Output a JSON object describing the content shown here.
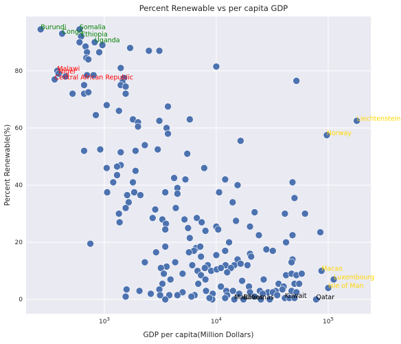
{
  "chart_data": {
    "type": "scatter",
    "title": "Percent Renewable vs per capita GDP",
    "xlabel": "GDP per capita(Million Dollars)",
    "ylabel": "Percent Renewable(%)",
    "xscale": "log",
    "xlim": [
      200,
      240000
    ],
    "ylim": [
      -5,
      99
    ],
    "xticks": [
      {
        "value": 1000,
        "base": "10",
        "exp": "3"
      },
      {
        "value": 10000,
        "base": "10",
        "exp": "4"
      },
      {
        "value": 100000,
        "base": "10",
        "exp": "5"
      }
    ],
    "yticks": [
      0,
      20,
      40,
      60,
      80
    ],
    "grid": true,
    "colors": {
      "background": "#eaeaf2",
      "grid": "#ffffff",
      "marker": "#4c72b0",
      "high_renewable_poor": "#008000",
      "high_renewable_low_income": "#ff0000",
      "high_gdp": "#ffd700",
      "low_renewable": "#000000"
    },
    "points": [
      [
        270,
        94.5
      ],
      [
        420,
        93
      ],
      [
        600,
        94.5
      ],
      [
        620,
        92
      ],
      [
        600,
        90
      ],
      [
        680,
        88.5
      ],
      [
        820,
        90
      ],
      [
        960,
        89
      ],
      [
        700,
        86.5
      ],
      [
        900,
        86.5
      ],
      [
        1700,
        88
      ],
      [
        2500,
        87
      ],
      [
        3100,
        87
      ],
      [
        690,
        84.5
      ],
      [
        720,
        84
      ],
      [
        10000,
        81.5
      ],
      [
        380,
        80
      ],
      [
        390,
        79
      ],
      [
        450,
        78
      ],
      [
        700,
        78.5
      ],
      [
        1400,
        81
      ],
      [
        1500,
        77.5
      ],
      [
        800,
        78.5
      ],
      [
        360,
        77
      ],
      [
        1450,
        76
      ],
      [
        1400,
        75
      ],
      [
        1550,
        74.5
      ],
      [
        660,
        75
      ],
      [
        52000,
        76.5
      ],
      [
        520,
        72
      ],
      [
        660,
        72
      ],
      [
        720,
        72.5
      ],
      [
        1550,
        72
      ],
      [
        1050,
        68
      ],
      [
        3700,
        67.5
      ],
      [
        1350,
        66
      ],
      [
        840,
        64.5
      ],
      [
        1800,
        63
      ],
      [
        5800,
        63
      ],
      [
        3100,
        62.5
      ],
      [
        2000,
        62
      ],
      [
        2000,
        60.5
      ],
      [
        3600,
        60
      ],
      [
        3700,
        58
      ],
      [
        16500,
        55.5
      ],
      [
        2300,
        54
      ],
      [
        920,
        52.5
      ],
      [
        3000,
        52.5
      ],
      [
        1400,
        51.5
      ],
      [
        1900,
        52
      ],
      [
        660,
        52
      ],
      [
        5500,
        51
      ],
      [
        1400,
        47
      ],
      [
        1300,
        46.5
      ],
      [
        1050,
        46
      ],
      [
        7800,
        46
      ],
      [
        1900,
        45
      ],
      [
        1300,
        43.5
      ],
      [
        4200,
        42.5
      ],
      [
        5300,
        42
      ],
      [
        12000,
        42
      ],
      [
        48000,
        41
      ],
      [
        1800,
        41
      ],
      [
        1200,
        41
      ],
      [
        4500,
        39
      ],
      [
        15500,
        40
      ],
      [
        1850,
        37.5
      ],
      [
        1060,
        37.5
      ],
      [
        3500,
        37.5
      ],
      [
        4500,
        37
      ],
      [
        1600,
        36.5
      ],
      [
        10600,
        37.5
      ],
      [
        2100,
        36.5
      ],
      [
        1650,
        34
      ],
      [
        50000,
        35.5
      ],
      [
        1550,
        32
      ],
      [
        2850,
        31.5
      ],
      [
        4350,
        32
      ],
      [
        14000,
        34
      ],
      [
        41000,
        30
      ],
      [
        62000,
        30
      ],
      [
        22000,
        30.5
      ],
      [
        1350,
        30
      ],
      [
        2700,
        28.5
      ],
      [
        3300,
        28
      ],
      [
        5200,
        28
      ],
      [
        6700,
        28.5
      ],
      [
        3550,
        26.5
      ],
      [
        1370,
        27
      ],
      [
        7400,
        27
      ],
      [
        3500,
        24.5
      ],
      [
        5600,
        25
      ],
      [
        8000,
        24
      ],
      [
        10000,
        25.5
      ],
      [
        20000,
        25.5
      ],
      [
        15000,
        27.5
      ],
      [
        10400,
        24.5
      ],
      [
        24000,
        22.5
      ],
      [
        85000,
        23.5
      ],
      [
        5800,
        21.5
      ],
      [
        48000,
        22.5
      ],
      [
        13000,
        20
      ],
      [
        42000,
        20
      ],
      [
        750,
        19.5
      ],
      [
        3500,
        18.5
      ],
      [
        6600,
        18
      ],
      [
        7200,
        18.5
      ],
      [
        6300,
        17
      ],
      [
        12000,
        17
      ],
      [
        28000,
        17.5
      ],
      [
        32000,
        17
      ],
      [
        20000,
        16
      ],
      [
        2900,
        16.5
      ],
      [
        5700,
        16.5
      ],
      [
        7300,
        15
      ],
      [
        10000,
        15.5
      ],
      [
        20500,
        15
      ],
      [
        15500,
        14
      ],
      [
        48000,
        14
      ],
      [
        47000,
        13
      ],
      [
        2300,
        13
      ],
      [
        4300,
        13
      ],
      [
        6100,
        12
      ],
      [
        8400,
        12
      ],
      [
        12100,
        12
      ],
      [
        14500,
        12
      ],
      [
        16500,
        12.5
      ],
      [
        19000,
        12
      ],
      [
        3600,
        11.5
      ],
      [
        3200,
        11
      ],
      [
        7900,
        11
      ],
      [
        6800,
        10
      ],
      [
        9000,
        10
      ],
      [
        10100,
        10.5
      ],
      [
        11000,
        11
      ],
      [
        13500,
        11
      ],
      [
        3400,
        9
      ],
      [
        5000,
        9
      ],
      [
        7300,
        8.5
      ],
      [
        12500,
        9.5
      ],
      [
        42000,
        8.5
      ],
      [
        47000,
        9
      ],
      [
        52000,
        8.5
      ],
      [
        58000,
        9
      ],
      [
        3900,
        7
      ],
      [
        8000,
        7
      ],
      [
        17000,
        6.5
      ],
      [
        26500,
        7
      ],
      [
        36000,
        5.5
      ],
      [
        50000,
        5.5
      ],
      [
        40000,
        4.5
      ],
      [
        3300,
        5.5
      ],
      [
        6900,
        5.5
      ],
      [
        11000,
        4.5
      ],
      [
        19600,
        4.5
      ],
      [
        55000,
        5.5
      ],
      [
        34000,
        3
      ],
      [
        1580,
        3.5
      ],
      [
        2060,
        3
      ],
      [
        3100,
        3.5
      ],
      [
        5000,
        2.5
      ],
      [
        6400,
        1.5
      ],
      [
        8100,
        3
      ],
      [
        12300,
        3
      ],
      [
        14100,
        3
      ],
      [
        24500,
        3
      ],
      [
        29000,
        2.5
      ],
      [
        39000,
        3.5
      ],
      [
        47000,
        3
      ],
      [
        52000,
        2.5
      ],
      [
        2600,
        2
      ],
      [
        3800,
        1.5
      ],
      [
        4500,
        1.5
      ],
      [
        9300,
        2
      ],
      [
        12500,
        1.5
      ],
      [
        16000,
        2
      ],
      [
        20000,
        2.5
      ],
      [
        26000,
        2
      ],
      [
        32000,
        2.5
      ],
      [
        35000,
        1.5
      ],
      [
        1550,
        1
      ],
      [
        3150,
        1.5
      ],
      [
        3500,
        0
      ],
      [
        6000,
        1
      ],
      [
        9200,
        0
      ],
      [
        12000,
        0.5
      ],
      [
        17500,
        0
      ],
      [
        22000,
        1
      ],
      [
        25000,
        0
      ],
      [
        30000,
        0
      ],
      [
        41000,
        0.5
      ],
      [
        45000,
        0.5
      ],
      [
        50000,
        0.5
      ],
      [
        78000,
        0
      ],
      [
        8700,
        0.5
      ],
      [
        14500,
        0
      ],
      [
        112000,
        7
      ],
      [
        100000,
        4
      ],
      [
        87000,
        10
      ],
      [
        97000,
        57.5
      ],
      [
        180000,
        62.5
      ]
    ],
    "annotations": [
      {
        "text": "Burundi",
        "x": 270,
        "y": 94.5,
        "color": "#008000"
      },
      {
        "text": "Somalia",
        "x": 600,
        "y": 94.5,
        "color": "#008000"
      },
      {
        "text": "Congo",
        "x": 420,
        "y": 93,
        "color": "#008000"
      },
      {
        "text": "Ethiopia",
        "x": 620,
        "y": 92,
        "color": "#008000"
      },
      {
        "text": "Uganda",
        "x": 820,
        "y": 90,
        "color": "#008000"
      },
      {
        "text": "Malawi",
        "x": 380,
        "y": 80,
        "color": "#ff0000"
      },
      {
        "text": "Niger",
        "x": 390,
        "y": 79,
        "color": "#ff0000"
      },
      {
        "text": "Central African Republic",
        "x": 360,
        "y": 77,
        "color": "#ff0000"
      },
      {
        "text": "Liechtenstein",
        "x": 180000,
        "y": 62.5,
        "color": "#ffd700"
      },
      {
        "text": "Norway",
        "x": 97000,
        "y": 57.5,
        "color": "#ffd700"
      },
      {
        "text": "Macao",
        "x": 87000,
        "y": 10,
        "color": "#ffd700"
      },
      {
        "text": "Luxembourg",
        "x": 112000,
        "y": 7,
        "color": "#ffd700"
      },
      {
        "text": "Isle of Man",
        "x": 100000,
        "y": 4,
        "color": "#ffd700"
      },
      {
        "text": "Maldives",
        "x": 14500,
        "y": 0,
        "color": "#000000"
      },
      {
        "text": "Bahamas",
        "x": 17500,
        "y": 0,
        "color": "#000000"
      },
      {
        "text": "Kuwait",
        "x": 41000,
        "y": 0.5,
        "color": "#000000"
      },
      {
        "text": "Qatar",
        "x": 78000,
        "y": 0,
        "color": "#000000"
      }
    ]
  }
}
